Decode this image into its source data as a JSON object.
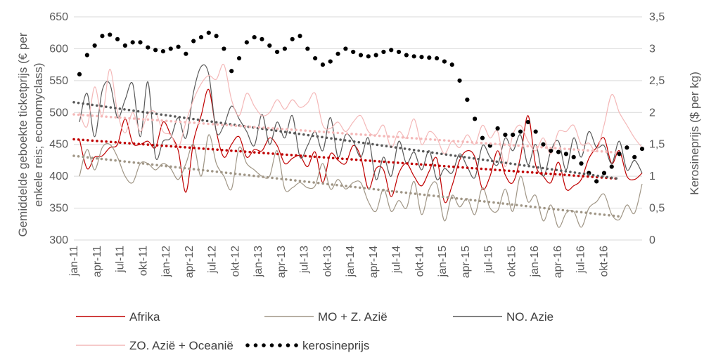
{
  "chart_data": {
    "type": "line",
    "ylabel_left_lines": [
      "Gemiddelde geboekte ticketprijs (€ per",
      "enkele reis; economyclass)"
    ],
    "ylabel_right": "Kerosineprijs ($ per kg)",
    "ylim_left": [
      300,
      650
    ],
    "ylim_right": [
      0,
      3.5
    ],
    "yticks_left": [
      "300",
      "350",
      "400",
      "450",
      "500",
      "550",
      "600",
      "650"
    ],
    "yticks_right": [
      "0",
      "0,5",
      "1",
      "1,5",
      "2",
      "2,5",
      "3",
      "3,5"
    ],
    "xtick_labels": [
      "jan-11",
      "apr-11",
      "jul-11",
      "okt-11",
      "jan-12",
      "apr-12",
      "jul-12",
      "okt-12",
      "jan-13",
      "apr-13",
      "jul-13",
      "okt-13",
      "jan-14",
      "apr-14",
      "jul-14",
      "okt-14",
      "jan-15",
      "apr-15",
      "jul-15",
      "okt-15",
      "jan-16",
      "apr-16",
      "jul-16",
      "okt-16"
    ],
    "grid": true,
    "legend_position": "bottom",
    "series": [
      {
        "name": "Afrika",
        "axis": "left",
        "color": "#c00000",
        "style": "solid",
        "values": [
          458,
          412,
          430,
          432,
          445,
          450,
          490,
          452,
          450,
          455,
          445,
          485,
          465,
          440,
          375,
          455,
          495,
          536,
          470,
          430,
          450,
          462,
          430,
          442,
          440,
          460,
          448,
          420,
          428,
          432,
          415,
          438,
          390,
          435,
          425,
          420,
          448,
          430,
          380,
          412,
          410,
          368,
          405,
          420,
          400,
          385,
          408,
          428,
          360,
          385,
          425,
          440,
          430,
          380,
          400,
          440,
          402,
          390,
          430,
          495,
          418,
          400,
          390,
          422,
          380,
          385,
          395,
          428,
          445,
          460,
          420,
          440,
          400,
          395,
          405
        ]
      },
      {
        "name": "MO + Z. Azië",
        "axis": "left",
        "color": "#a09686",
        "style": "solid",
        "values": [
          400,
          442,
          410,
          445,
          450,
          430,
          400,
          390,
          420,
          420,
          410,
          420,
          412,
          395,
          420,
          450,
          400,
          465,
          420,
          400,
          380,
          445,
          420,
          410,
          400,
          400,
          440,
          380,
          382,
          390,
          382,
          385,
          420,
          380,
          395,
          380,
          390,
          390,
          360,
          345,
          380,
          345,
          362,
          350,
          392,
          340,
          380,
          388,
          330,
          370,
          352,
          365,
          340,
          382,
          350,
          346,
          380,
          345,
          400,
          360,
          370,
          330,
          355,
          320,
          342,
          345,
          320,
          350,
          360,
          372,
          340,
          332,
          355,
          342,
          388
        ]
      },
      {
        "name": "NO. Azie",
        "axis": "left",
        "color": "#595959",
        "style": "solid",
        "values": [
          485,
          530,
          462,
          535,
          545,
          492,
          520,
          545,
          462,
          548,
          430,
          455,
          460,
          492,
          460,
          532,
          572,
          560,
          470,
          480,
          510,
          490,
          470,
          448,
          497,
          450,
          485,
          460,
          495,
          430,
          448,
          470,
          440,
          492,
          430,
          465,
          455,
          430,
          460,
          395,
          430,
          400,
          455,
          420,
          438,
          410,
          440,
          395,
          412,
          405,
          435,
          415,
          398,
          448,
          430,
          418,
          460,
          440,
          465,
          418,
          450,
          400,
          440,
          455,
          410,
          460,
          430,
          470,
          445,
          448,
          420,
          455,
          410,
          425,
          405
        ]
      },
      {
        "name": "ZO. Azië + Oceanië",
        "axis": "left",
        "color": "#f4b8b8",
        "style": "solid",
        "values": [
          500,
          478,
          540,
          495,
          568,
          500,
          468,
          500,
          470,
          498,
          500,
          470,
          465,
          445,
          485,
          520,
          545,
          558,
          552,
          575,
          520,
          495,
          530,
          510,
          495,
          500,
          520,
          505,
          520,
          508,
          515,
          530,
          480,
          475,
          485,
          470,
          485,
          495,
          470,
          465,
          480,
          445,
          470,
          460,
          490,
          450,
          470,
          460,
          435,
          455,
          445,
          465,
          450,
          480,
          460,
          470,
          415,
          465,
          480,
          455,
          440,
          460,
          435,
          470,
          470,
          480,
          450,
          452,
          440,
          480,
          528,
          500,
          480,
          460,
          445
        ]
      },
      {
        "name": "kerosineprijs",
        "axis": "right",
        "color": "#000000",
        "style": "dotted",
        "values": [
          2.6,
          2.9,
          3.05,
          3.2,
          3.22,
          3.15,
          3.05,
          3.1,
          3.1,
          3.02,
          2.98,
          2.96,
          3.0,
          3.03,
          2.92,
          3.12,
          3.18,
          3.25,
          3.2,
          3.0,
          2.65,
          2.85,
          3.1,
          3.18,
          3.15,
          3.05,
          2.95,
          3.0,
          3.15,
          3.2,
          3.0,
          2.85,
          2.75,
          2.8,
          2.92,
          3.0,
          2.95,
          2.9,
          2.88,
          2.9,
          2.95,
          2.98,
          2.95,
          2.9,
          2.88,
          2.87,
          2.86,
          2.85,
          2.8,
          2.75,
          2.5,
          2.2,
          1.9,
          1.6,
          1.48,
          1.75,
          1.65,
          1.65,
          1.7,
          1.85,
          1.7,
          1.5,
          1.4,
          1.38,
          1.35,
          1.3,
          1.2,
          1.05,
          0.92,
          1.05,
          1.15,
          1.35,
          1.45,
          1.3,
          1.43
        ]
      },
      {
        "name": "",
        "axis": "left",
        "color": "#c00000",
        "style": "trend",
        "values": [
          458,
          396
        ]
      },
      {
        "name": "",
        "axis": "left",
        "color": "#a09686",
        "style": "trend",
        "values": [
          432,
          337
        ]
      },
      {
        "name": "",
        "axis": "left",
        "color": "#595959",
        "style": "trend",
        "values": [
          516,
          396
        ]
      },
      {
        "name": "",
        "axis": "left",
        "color": "#f4b8b8",
        "style": "trend",
        "values": [
          497,
          437
        ]
      }
    ]
  }
}
